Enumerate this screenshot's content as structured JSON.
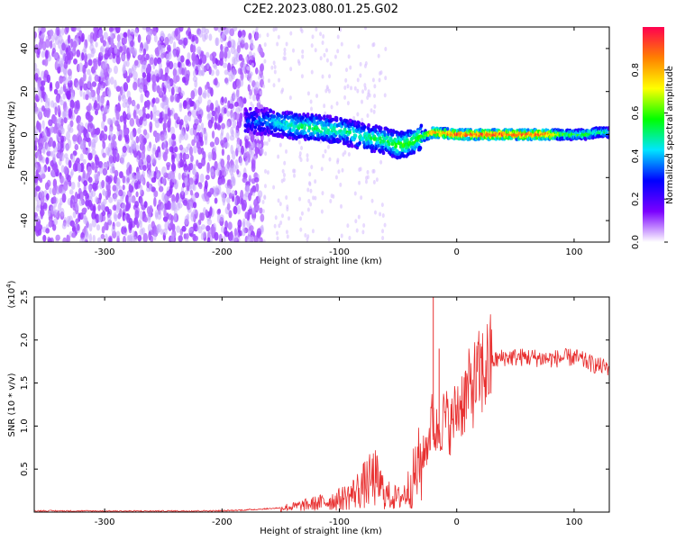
{
  "figure_title": "C2E2.2023.080.01.25.G02",
  "chart_data": [
    {
      "type": "heatmap",
      "title": "",
      "xlabel": "Height of straight line (km)",
      "ylabel": "Frequency (Hz)",
      "xlim": [
        -360,
        130
      ],
      "ylim": [
        -50,
        50
      ],
      "xticks": [
        -300,
        -200,
        -100,
        0,
        100
      ],
      "yticks": [
        -40,
        -20,
        0,
        20,
        40
      ],
      "colorbar": {
        "label": "Normalized spectral amplitude",
        "range": [
          0.0,
          1.0
        ],
        "ticks": [
          "0.0",
          "0.2",
          "0.4",
          "0.6",
          "0.8"
        ],
        "colormap": [
          "#ffffff",
          "#7b00ff",
          "#0000ff",
          "#00e5ff",
          "#00ff00",
          "#ffff00",
          "#ff8000",
          "#ff0050"
        ]
      },
      "features": {
        "noise_region_x": [
          -360,
          -180
        ],
        "noise_amplitude": 0.35,
        "signal_track": {
          "x": [
            -180,
            -160,
            -140,
            -120,
            -100,
            -80,
            -60,
            -50,
            -40,
            -30,
            -20,
            0,
            20,
            40,
            60,
            80,
            90,
            100,
            110,
            120,
            130
          ],
          "freq": [
            6,
            6,
            4,
            3,
            2,
            -1,
            -3,
            -5,
            -4,
            -1,
            1,
            0,
            0,
            0,
            0,
            0,
            0,
            0,
            0,
            1,
            1
          ],
          "amplitude": [
            0.3,
            0.4,
            0.5,
            0.55,
            0.5,
            0.5,
            0.55,
            0.6,
            0.6,
            0.6,
            0.85,
            0.95,
            0.95,
            0.95,
            0.95,
            0.9,
            0.6,
            0.6,
            0.6,
            0.55,
            0.55
          ]
        }
      }
    },
    {
      "type": "line",
      "title": "",
      "xlabel": "Height of straight line (km)",
      "ylabel": "SNR (10 * v/v)",
      "y_multiplier": "(x10",
      "y_multiplier_exp": "4",
      "xlim": [
        -360,
        130
      ],
      "ylim": [
        0,
        25000
      ],
      "xticks": [
        -300,
        -200,
        -100,
        0,
        100
      ],
      "yticks": [
        5000,
        10000,
        15000,
        20000,
        25000
      ],
      "ytick_labels": [
        "0.5",
        "1.0",
        "1.5",
        "2.0",
        "2.5"
      ],
      "series": [
        {
          "color": "#e83030",
          "x": [
            -360,
            -300,
            -250,
            -200,
            -180,
            -160,
            -140,
            -120,
            -100,
            -90,
            -80,
            -75,
            -70,
            -65,
            -60,
            -55,
            -50,
            -45,
            -40,
            -35,
            -30,
            -25,
            -22,
            -20,
            -18,
            -15,
            -10,
            -5,
            0,
            10,
            20,
            30,
            40,
            60,
            80,
            100,
            110,
            120,
            130
          ],
          "values": [
            150,
            120,
            120,
            150,
            250,
            400,
            600,
            1000,
            1500,
            2000,
            3000,
            3500,
            4000,
            3000,
            2000,
            1800,
            1600,
            2000,
            3000,
            4500,
            6000,
            8000,
            10000,
            11000,
            9000,
            10000,
            11000,
            10000,
            12000,
            14000,
            16000,
            17500,
            18000,
            18000,
            17800,
            18000,
            17500,
            17000,
            16800
          ]
        }
      ],
      "spikes": [
        {
          "x": -68,
          "value": 6500
        },
        {
          "x": -20,
          "value": 25000
        },
        {
          "x": -15,
          "value": 19000
        }
      ]
    }
  ]
}
